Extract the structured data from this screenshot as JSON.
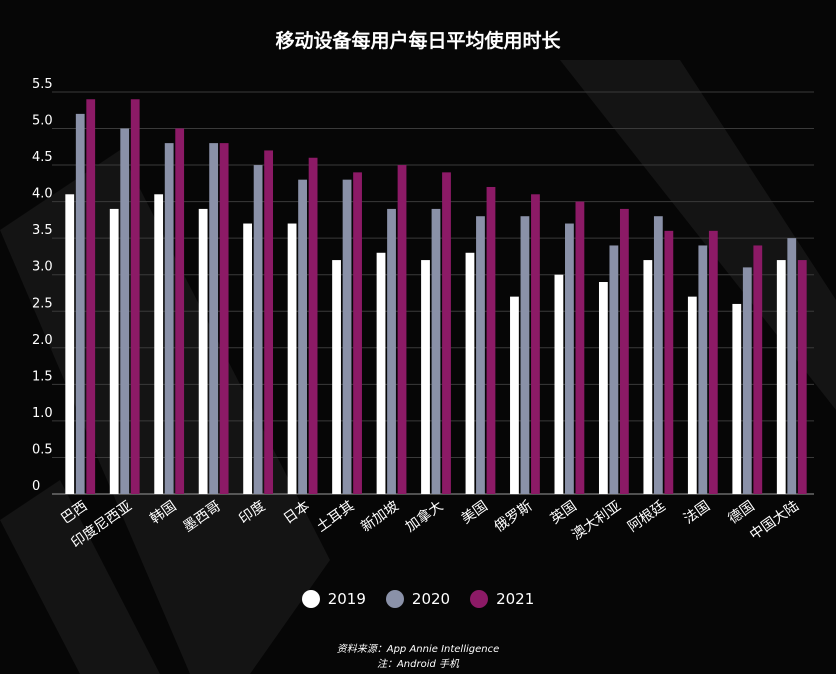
{
  "chart_data": {
    "type": "bar",
    "title": "移动设备每用户每日平均使用时长",
    "categories": [
      "巴西",
      "印度尼西亚",
      "韩国",
      "墨西哥",
      "印度",
      "日本",
      "土耳其",
      "新加坡",
      "加拿大",
      "美国",
      "俄罗斯",
      "英国",
      "澳大利亚",
      "阿根廷",
      "法国",
      "德国",
      "中国大陆"
    ],
    "series": [
      {
        "name": "2019",
        "color": "#ffffff",
        "values": [
          4.1,
          3.9,
          4.1,
          3.9,
          3.7,
          3.7,
          3.2,
          3.3,
          3.2,
          3.3,
          2.7,
          3.0,
          2.9,
          3.2,
          2.7,
          2.6,
          3.2
        ]
      },
      {
        "name": "2020",
        "color": "#8a91a8",
        "values": [
          5.2,
          5.0,
          4.8,
          4.8,
          4.5,
          4.3,
          4.3,
          3.9,
          3.9,
          3.8,
          3.8,
          3.7,
          3.4,
          3.8,
          3.4,
          3.1,
          3.5
        ]
      },
      {
        "name": "2021",
        "color": "#8c1a66",
        "values": [
          5.4,
          5.4,
          5.0,
          4.8,
          4.7,
          4.6,
          4.4,
          4.5,
          4.4,
          4.2,
          4.1,
          4.0,
          3.9,
          3.6,
          3.6,
          3.4,
          3.2
        ]
      }
    ],
    "yticks": [
      "0",
      "0.5",
      "1.0",
      "1.5",
      "2.0",
      "2.5",
      "3.0",
      "3.5",
      "4.0",
      "4.5",
      "5.0",
      "5.5"
    ],
    "ylim": [
      0,
      5.5
    ],
    "grid": true,
    "legend_position": "bottom"
  },
  "source": {
    "line1": "资料来源：App Annie Intelligence",
    "line2": "注：Android 手机"
  },
  "colors": {
    "background": "#060606",
    "grid": "#3a3a3a",
    "text": "#ffffff"
  }
}
